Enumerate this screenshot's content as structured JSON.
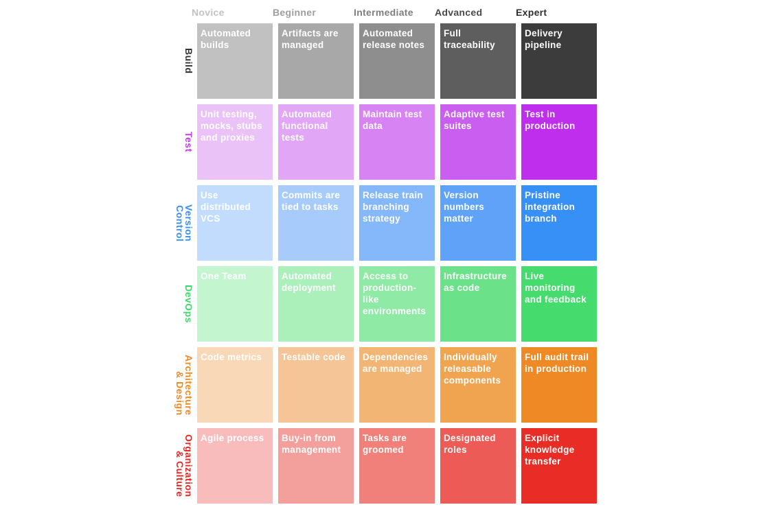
{
  "columns": [
    {
      "label": "Novice",
      "color": "#c2c2c2"
    },
    {
      "label": "Beginner",
      "color": "#9e9e9e"
    },
    {
      "label": "Intermediate",
      "color": "#7f7f7f"
    },
    {
      "label": "Advanced",
      "color": "#4a4a4a"
    },
    {
      "label": "Expert",
      "color": "#2e2e2e"
    }
  ],
  "rows": [
    {
      "label": "Build",
      "label_color": "#333333",
      "cell_colors": [
        "#c1c1c1",
        "#a8a8a8",
        "#8e8e8e",
        "#5e5e5e",
        "#3c3c3c"
      ],
      "cells": [
        "Automated builds",
        "Artifacts are managed",
        "Automated release notes",
        "Full traceability",
        "Delivery pipeline"
      ]
    },
    {
      "label": "Test",
      "label_color": "#c13ee8",
      "cell_colors": [
        "#ebc2f8",
        "#e1a6f6",
        "#d783f4",
        "#c95ef0",
        "#bf2eed"
      ],
      "cells": [
        "Unit testing, mocks, stubs and proxies",
        "Automated functional tests",
        "Maintain test data",
        "Adaptive test suites",
        "Test in production"
      ]
    },
    {
      "label": "Version\nControl",
      "label_color": "#3b8ef5",
      "cell_colors": [
        "#c1dcfc",
        "#a7ccfb",
        "#85b8fa",
        "#5fa3f9",
        "#3790f6"
      ],
      "cells": [
        "Use distributed VCS",
        "Commits are tied to tasks",
        "Release train branching strategy",
        "Version numbers matter",
        "Pristine integration branch"
      ]
    },
    {
      "label": "DevOps",
      "label_color": "#3ed86a",
      "cell_colors": [
        "#c3f6cf",
        "#abf0bb",
        "#8eeaa4",
        "#6be28a",
        "#46dc6d"
      ],
      "cells": [
        "One Team",
        "Automated deployment",
        "Access to production-like environments",
        "Infrastructure as code",
        "Live monitoring and feedback"
      ]
    },
    {
      "label": "Architecture\n& Design",
      "label_color": "#ee8a26",
      "cell_colors": [
        "#f8d8b7",
        "#f5c597",
        "#f2b574",
        "#f0a44f",
        "#ed8a25"
      ],
      "cells": [
        "Code metrics",
        "Testable code",
        "Dependencies are managed",
        "Individually releasable components",
        "Full audit trail in production"
      ]
    },
    {
      "label": "Organization\n& Culture",
      "label_color": "#e42a24",
      "cell_colors": [
        "#f7bcbb",
        "#f39f9c",
        "#f08079",
        "#ec5b55",
        "#e72d26"
      ],
      "cells": [
        "Agile process",
        "Buy-in from management",
        "Tasks are groomed",
        "Designated roles",
        "Explicit knowledge transfer"
      ]
    }
  ]
}
